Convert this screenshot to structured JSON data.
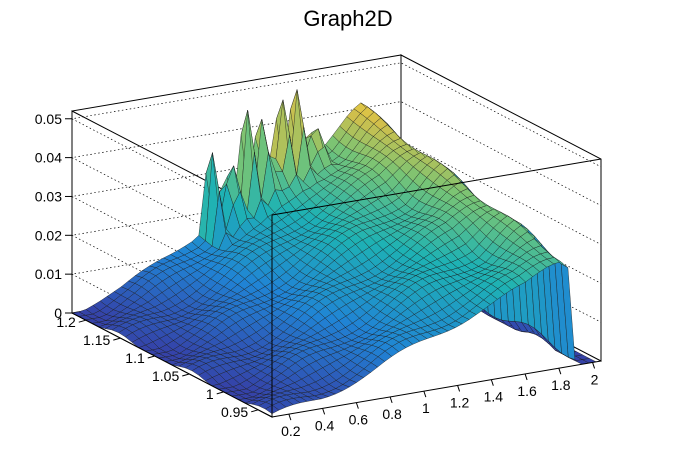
{
  "chart_data": {
    "type": "surface",
    "title": "Graph2D",
    "xlabel": "",
    "ylabel": "",
    "zlabel": "",
    "xlim": [
      0.1,
      2.05
    ],
    "ylim": [
      0.93,
      1.22
    ],
    "zlim": [
      0,
      0.052
    ],
    "x_ticks": [
      "0.2",
      "0.4",
      "0.6",
      "0.8",
      "1",
      "1.2",
      "1.4",
      "1.6",
      "1.8",
      "2"
    ],
    "y_ticks": [
      "0.95",
      "1",
      "1.05",
      "1.1",
      "1.15",
      "1.2"
    ],
    "z_ticks": [
      "0",
      "0.01",
      "0.02",
      "0.03",
      "0.04",
      "0.05"
    ],
    "colormap": "viridis-like (blue → cyan → green → yellow)",
    "grid": true,
    "surface_shape": {
      "description": "z grows with x, near 0 at x≈0.1 rising to ≈0.036 at x≈1.8, sharp drop to 0 at x≈1.9; a row of spikes near y≈1.2 for x≈0.9–1.5 reaching ≈0.05",
      "base_profile_x": [
        0.1,
        0.4,
        0.7,
        1.0,
        1.3,
        1.6,
        1.75,
        1.85,
        1.9,
        2.0
      ],
      "base_profile_z": [
        0.0,
        0.004,
        0.01,
        0.017,
        0.024,
        0.03,
        0.036,
        0.038,
        0.0,
        0.0
      ],
      "spike_x": [
        0.9,
        1.0,
        1.1,
        1.2,
        1.3,
        1.4,
        1.5
      ],
      "spike_z": [
        0.038,
        0.042,
        0.046,
        0.05,
        0.051,
        0.05,
        0.045
      ]
    }
  }
}
